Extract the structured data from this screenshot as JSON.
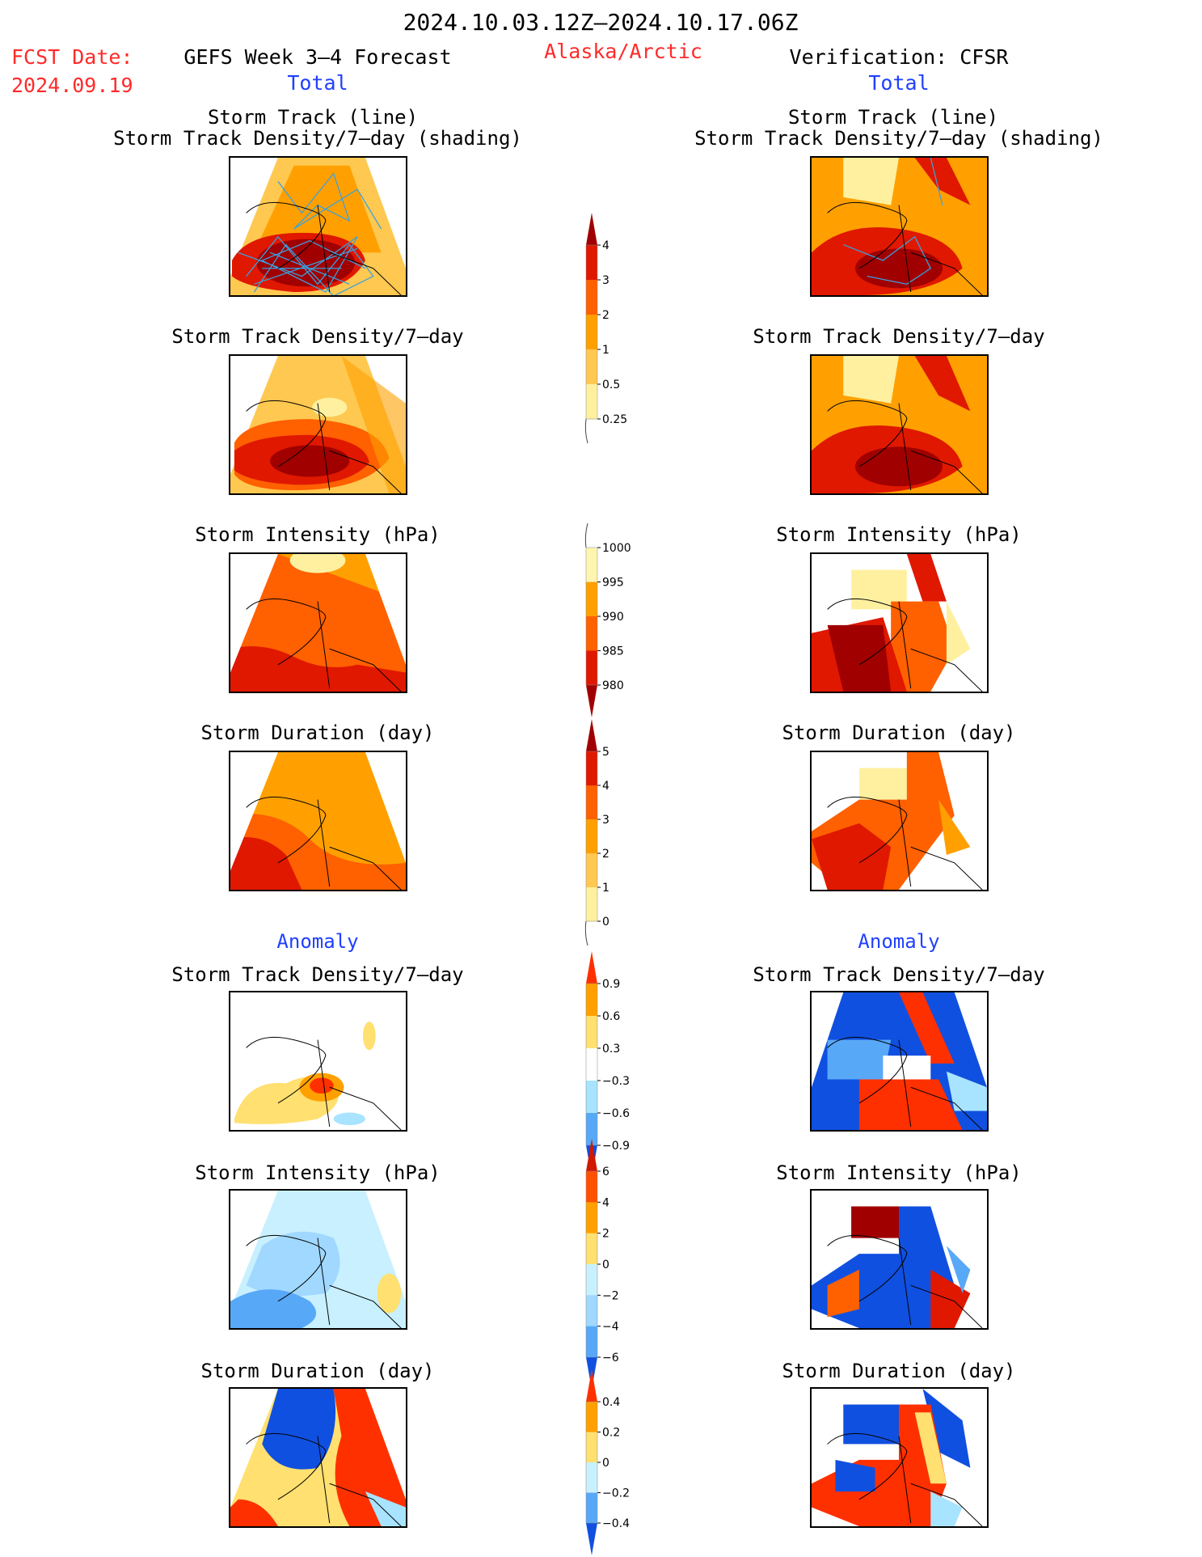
{
  "header": {
    "date_range": "2024.10.03.12Z–2024.10.17.06Z",
    "fcst_label": "FCST Date:",
    "fcst_date": "2024.09.19",
    "forecast_title": "GEFS Week 3–4 Forecast",
    "region": "Alaska/Arctic",
    "verification": "Verification: CFSR",
    "left_section": "Total",
    "right_section": "Total"
  },
  "anomaly_labels": {
    "left": "Anomaly",
    "right": "Anomaly"
  },
  "panel_titles": {
    "track_line": "Storm Track (line)",
    "track_shading": "Storm Track Density/7–day (shading)",
    "density": "Storm Track Density/7–day",
    "intensity": "Storm Intensity (hPa)",
    "duration": "Storm Duration (day)"
  },
  "colorbars": {
    "density_total": {
      "labels": [
        "4",
        "3",
        "2",
        "1",
        "0.5",
        "0.25"
      ],
      "colors": [
        "#a00000",
        "#e01800",
        "#ff6000",
        "#ffa000",
        "#ffc850",
        "#fff0a0"
      ]
    },
    "intensity_total": {
      "labels": [
        "1000",
        "995",
        "990",
        "985",
        "980"
      ],
      "colors": [
        "#fff5b0",
        "#ffa000",
        "#ff6000",
        "#e01800",
        "#a00000"
      ]
    },
    "duration_total": {
      "labels": [
        "5",
        "4",
        "3",
        "2",
        "1",
        "0"
      ],
      "colors": [
        "#a00000",
        "#e01800",
        "#ff6000",
        "#ffa000",
        "#ffc850",
        "#fff0a0"
      ]
    },
    "density_anom": {
      "labels": [
        "0.9",
        "0.6",
        "0.3",
        "−0.3",
        "−0.6",
        "−0.9"
      ],
      "colors": [
        "#ff3000",
        "#ffa000",
        "#ffe070",
        "#ffffff",
        "#a8e4ff",
        "#58a8f8",
        "#1050e0"
      ]
    },
    "intensity_anom": {
      "labels": [
        "6",
        "4",
        "2",
        "0",
        "−2",
        "−4",
        "−6"
      ],
      "colors": [
        "#d01800",
        "#ff5000",
        "#ffa000",
        "#ffe070",
        "#c8f0ff",
        "#a0d8ff",
        "#58a8f8",
        "#1050e0"
      ]
    },
    "duration_anom": {
      "labels": [
        "0.4",
        "0.2",
        "0",
        "−0.2",
        "−0.4"
      ],
      "colors": [
        "#ff3000",
        "#ffa000",
        "#ffe070",
        "#c8f0ff",
        "#58a8f8",
        "#1050e0"
      ]
    }
  }
}
